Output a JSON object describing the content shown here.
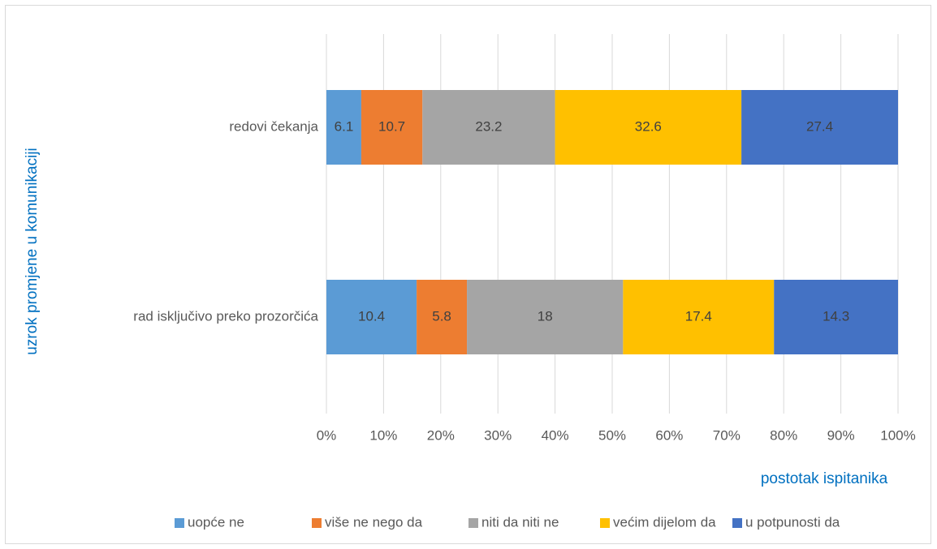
{
  "chart_data": {
    "type": "bar",
    "orientation": "horizontal",
    "stacked": "percent",
    "x_label": "postotak ispitanika",
    "y_label": "uzrok promjene u komunikaciji",
    "categories": [
      "redovi čekanja",
      "rad isključivo preko prozorčića"
    ],
    "series": [
      {
        "name": "uopće ne",
        "color": "#5b9bd5",
        "values": [
          6.1,
          10.4
        ]
      },
      {
        "name": "više ne nego da",
        "color": "#ed7d31",
        "values": [
          10.7,
          5.8
        ]
      },
      {
        "name": "niti da niti ne",
        "color": "#a5a5a5",
        "values": [
          23.2,
          18
        ]
      },
      {
        "name": "većim dijelom da",
        "color": "#ffc000",
        "values": [
          32.6,
          17.4
        ]
      },
      {
        "name": "u potpunosti da",
        "color": "#4472c4",
        "values": [
          27.4,
          14.3
        ]
      }
    ],
    "xlim": [
      0,
      100
    ],
    "xticks": [
      {
        "value": 0,
        "label": "0%"
      },
      {
        "value": 10,
        "label": "10%"
      },
      {
        "value": 20,
        "label": "20%"
      },
      {
        "value": 30,
        "label": "30%"
      },
      {
        "value": 40,
        "label": "40%"
      },
      {
        "value": 50,
        "label": "50%"
      },
      {
        "value": 60,
        "label": "60%"
      },
      {
        "value": 70,
        "label": "70%"
      },
      {
        "value": 80,
        "label": "80%"
      },
      {
        "value": 90,
        "label": "90%"
      },
      {
        "value": 100,
        "label": "100%"
      }
    ],
    "grid": true,
    "legend": "bottom"
  }
}
